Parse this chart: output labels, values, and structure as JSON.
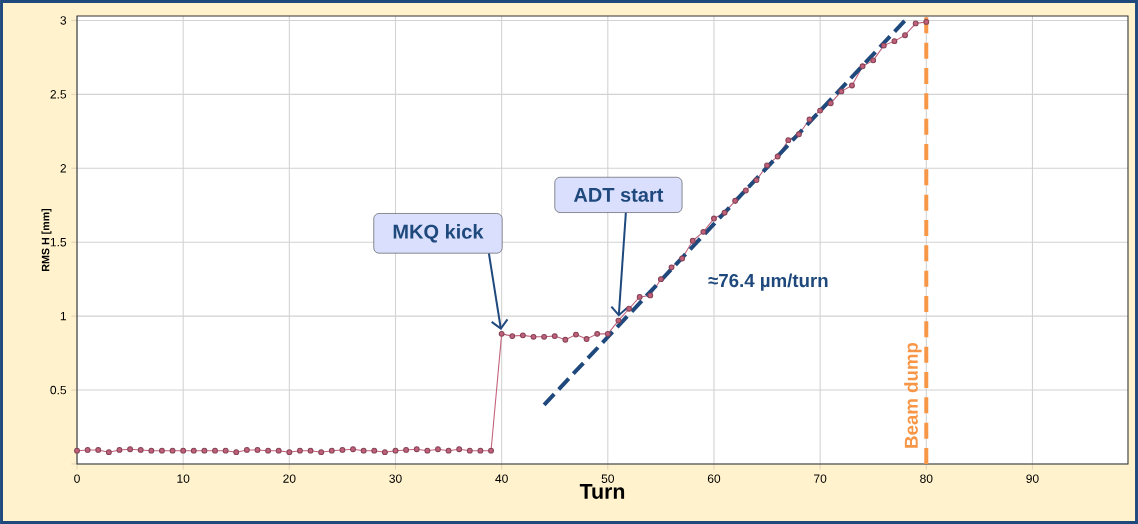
{
  "chart_data": {
    "type": "line",
    "xlabel": "Turn",
    "ylabel": "RMS H [mm]",
    "x": [
      0,
      1,
      2,
      3,
      4,
      5,
      6,
      7,
      8,
      9,
      10,
      11,
      12,
      13,
      14,
      15,
      16,
      17,
      18,
      19,
      20,
      21,
      22,
      23,
      24,
      25,
      26,
      27,
      28,
      29,
      30,
      31,
      32,
      33,
      34,
      35,
      36,
      37,
      38,
      39,
      40,
      41,
      42,
      43,
      44,
      45,
      46,
      47,
      48,
      49,
      50,
      51,
      52,
      53,
      54,
      55,
      56,
      57,
      58,
      59,
      60,
      61,
      62,
      63,
      64,
      65,
      66,
      67,
      68,
      69,
      70,
      71,
      72,
      73,
      74,
      75,
      76,
      77,
      78,
      79,
      80
    ],
    "series": [
      {
        "type": "line",
        "color": "#c0607a",
        "marker": "circle",
        "line_style": "solid",
        "values": [
          0.09,
          0.095,
          0.095,
          0.08,
          0.095,
          0.1,
          0.095,
          0.09,
          0.09,
          0.09,
          0.09,
          0.09,
          0.09,
          0.09,
          0.09,
          0.08,
          0.095,
          0.095,
          0.09,
          0.09,
          0.08,
          0.09,
          0.09,
          0.08,
          0.09,
          0.095,
          0.1,
          0.09,
          0.09,
          0.08,
          0.09,
          0.095,
          0.1,
          0.09,
          0.1,
          0.09,
          0.1,
          0.09,
          0.09,
          0.09,
          0.88,
          0.865,
          0.87,
          0.86,
          0.86,
          0.865,
          0.84,
          0.875,
          0.845,
          0.88,
          0.88,
          0.97,
          1.05,
          1.13,
          1.14,
          1.25,
          1.33,
          1.39,
          1.51,
          1.57,
          1.66,
          1.7,
          1.78,
          1.85,
          1.92,
          2.02,
          2.08,
          2.19,
          2.23,
          2.33,
          2.39,
          2.44,
          2.52,
          2.56,
          2.69,
          2.73,
          2.83,
          2.86,
          2.9,
          2.98,
          2.99
        ]
      },
      {
        "type": "line",
        "color": "#1f497d",
        "marker": "none",
        "line_style": "dashed",
        "x": [
          44,
          78
        ],
        "values": [
          0.4,
          3.0
        ]
      }
    ],
    "xlim": [
      0,
      99
    ],
    "ylim": [
      0,
      3.03
    ],
    "xticks": [
      0,
      10,
      20,
      30,
      40,
      50,
      60,
      70,
      80,
      90
    ],
    "yticks": [
      {
        "value": 0,
        "label": null
      },
      0.5,
      1,
      1.5,
      2,
      2.5,
      3
    ],
    "grid": true,
    "ref_lines": [
      {
        "axis": "x",
        "value": 80,
        "label": "Beam dump",
        "color": "#f79646",
        "line_style": "dashed"
      }
    ],
    "annotations": [
      {
        "text": "MKQ kick",
        "x": 40,
        "y": 0.88
      },
      {
        "text": "ADT start",
        "x": 51,
        "y": 0.97
      },
      "≈76.4 µm/turn"
    ]
  }
}
